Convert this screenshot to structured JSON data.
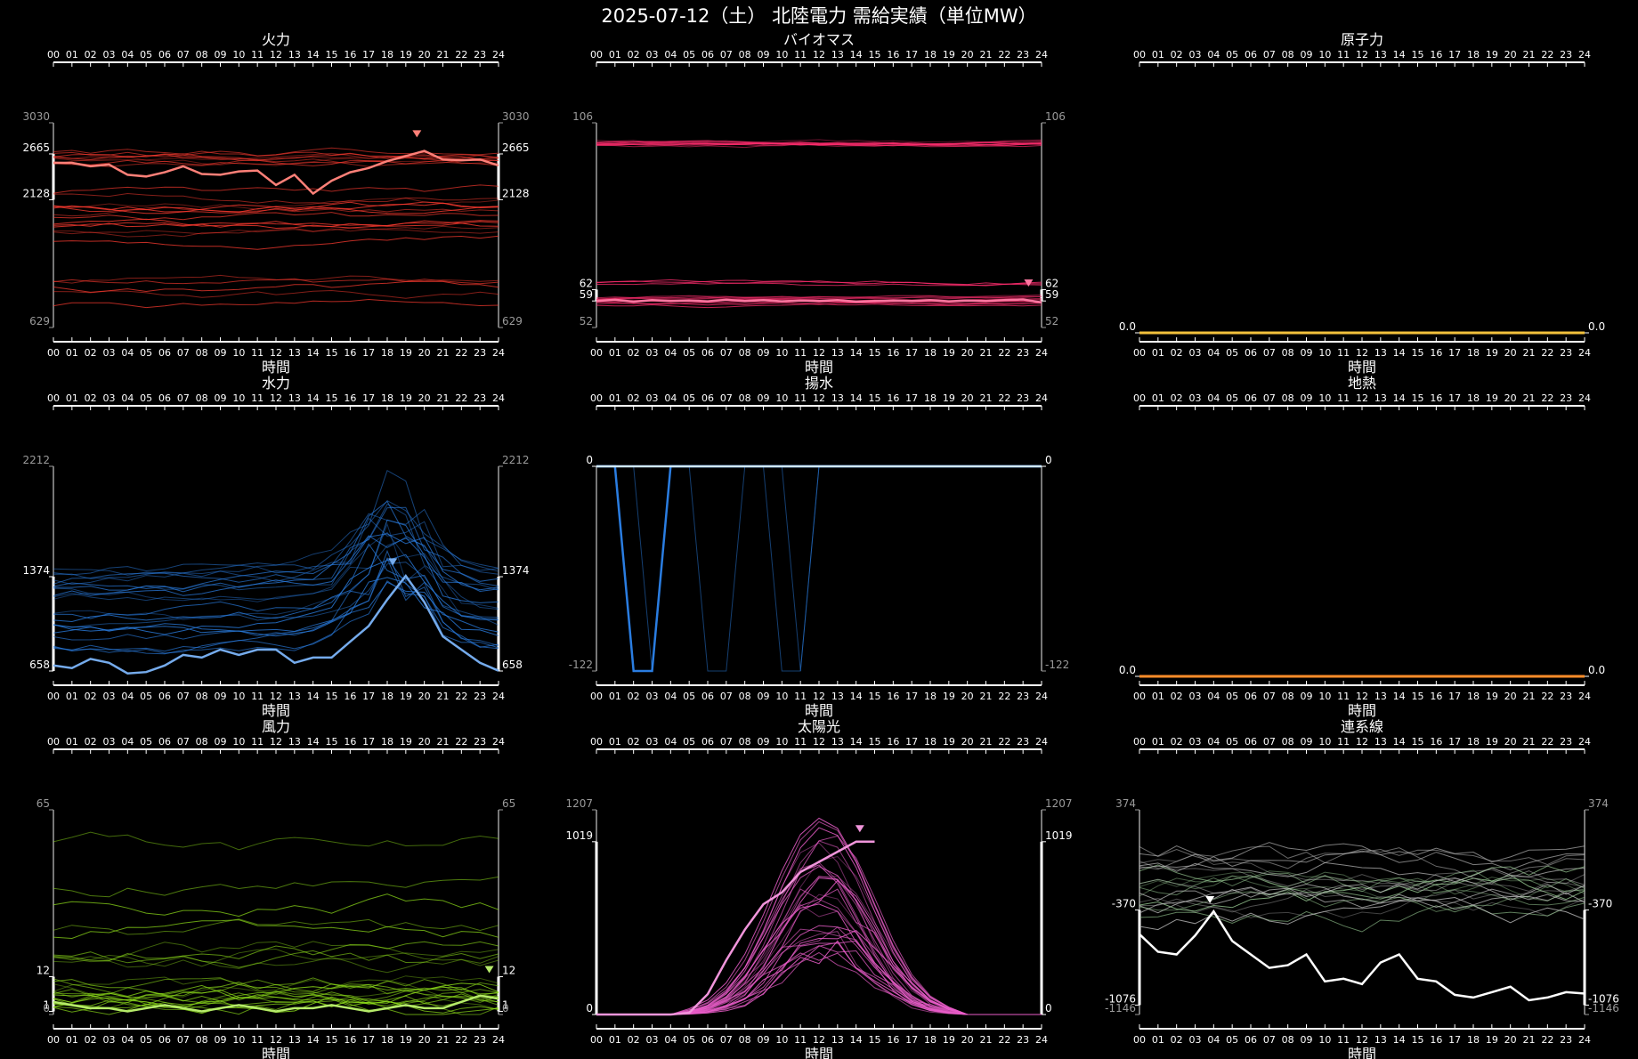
{
  "title": "2025-07-12（土） 北陸電力 需給実績（単位MW）",
  "xlabel": "時間",
  "hours": [
    "00",
    "01",
    "02",
    "03",
    "04",
    "05",
    "06",
    "07",
    "08",
    "09",
    "10",
    "11",
    "12",
    "13",
    "14",
    "15",
    "16",
    "17",
    "18",
    "19",
    "20",
    "21",
    "22",
    "23",
    "24"
  ],
  "chart_data": [
    {
      "type": "line",
      "title": "火力",
      "color": "#ff3b30",
      "ylim": [
        629,
        3030
      ],
      "yticks": [
        {
          "label": "3030",
          "value": 3030,
          "tone": "grey"
        },
        {
          "label": "2665",
          "value": 2665,
          "tone": "white"
        },
        {
          "label": "2128",
          "value": 2128,
          "tone": "white"
        },
        {
          "label": "629",
          "value": 629,
          "tone": "grey"
        }
      ],
      "seed": 11,
      "bands": [
        [
          2550,
          2700,
          9
        ],
        [
          1650,
          2250,
          14
        ],
        [
          900,
          1250,
          5
        ]
      ],
      "noise": 80,
      "main": [
        2560,
        2560,
        2520,
        2540,
        2420,
        2400,
        2450,
        2520,
        2430,
        2420,
        2460,
        2470,
        2300,
        2420,
        2200,
        2350,
        2450,
        2500,
        2580,
        2640,
        2700,
        2600,
        2590,
        2600,
        2530
      ],
      "marker": {
        "hour": 19.6,
        "value": 2890
      }
    },
    {
      "type": "line",
      "title": "バイオマス",
      "color": "#ff2d6e",
      "ylim": [
        52,
        106
      ],
      "yticks": [
        {
          "label": "106",
          "value": 106,
          "tone": "grey"
        },
        {
          "label": "62",
          "value": 62,
          "tone": "white"
        },
        {
          "label": "59",
          "value": 59,
          "tone": "white"
        },
        {
          "label": "52",
          "value": 52,
          "tone": "grey"
        }
      ],
      "seed": 23,
      "bands": [
        [
          100,
          101.5,
          12
        ],
        [
          58,
          60,
          12
        ],
        [
          62,
          64,
          3
        ]
      ],
      "noise": 0.8,
      "main": [
        59,
        59.3,
        58.8,
        59.2,
        59,
        59.1,
        58.9,
        59.3,
        59,
        59.2,
        58.9,
        59.1,
        59,
        59.2,
        58.8,
        59,
        59.1,
        59,
        59.2,
        58.9,
        59.1,
        59,
        59.2,
        59.4,
        58.6
      ],
      "marker": {
        "hour": 23.3,
        "value": 63.5
      }
    },
    {
      "type": "line",
      "title": "原子力",
      "color": "#f2c13c",
      "ylim": [
        0,
        1
      ],
      "yticks": [
        {
          "label": "0.0",
          "value": 0,
          "tone": "white"
        }
      ],
      "seed": 1,
      "bands": [],
      "noise": 0,
      "main": [
        0,
        0,
        0,
        0,
        0,
        0,
        0,
        0,
        0,
        0,
        0,
        0,
        0,
        0,
        0,
        0,
        0,
        0,
        0,
        0,
        0,
        0,
        0,
        0,
        0
      ]
    },
    {
      "type": "line",
      "title": "水力",
      "color": "#2a7de1",
      "ylim": [
        658,
        2212
      ],
      "yticks": [
        {
          "label": "2212",
          "value": 2212,
          "tone": "grey"
        },
        {
          "label": "1374",
          "value": 1374,
          "tone": "white"
        },
        {
          "label": "658",
          "value": 658,
          "tone": "white"
        }
      ],
      "seed": 37,
      "bands": [
        [
          850,
          1450,
          22
        ]
      ],
      "noise": 90,
      "peak": {
        "center": 18.3,
        "width": 2.4,
        "amp": 600
      },
      "main": [
        700,
        680,
        750,
        720,
        640,
        650,
        700,
        780,
        760,
        820,
        780,
        820,
        820,
        720,
        760,
        760,
        880,
        1000,
        1200,
        1380,
        1180,
        920,
        820,
        720,
        660
      ],
      "marker": {
        "hour": 18.3,
        "value": 1480
      }
    },
    {
      "type": "line",
      "title": "揚水",
      "color": "#2a7de1",
      "ylim": [
        -122,
        0
      ],
      "yticks": [
        {
          "label": "0",
          "value": 0,
          "tone": "white"
        },
        {
          "label": "-122",
          "value": -122,
          "tone": "grey"
        }
      ],
      "seed": 5,
      "bands": [],
      "noise": 0,
      "ghosts": [
        [
          0,
          0,
          -122,
          -122,
          0,
          0,
          0,
          0,
          0,
          0,
          0,
          0,
          0,
          0,
          0,
          0,
          0,
          0,
          0,
          0,
          0,
          0,
          0,
          0,
          0
        ],
        [
          0,
          0,
          0,
          -122,
          0,
          0,
          0,
          0,
          0,
          0,
          0,
          0,
          0,
          0,
          0,
          0,
          0,
          0,
          0,
          0,
          0,
          0,
          0,
          0,
          0
        ],
        [
          0,
          0,
          0,
          0,
          0,
          0,
          -122,
          -122,
          0,
          0,
          0,
          0,
          0,
          0,
          0,
          0,
          0,
          0,
          0,
          0,
          0,
          0,
          0,
          0,
          0
        ],
        [
          0,
          0,
          0,
          0,
          0,
          0,
          0,
          0,
          0,
          0,
          -122,
          -122,
          0,
          0,
          0,
          0,
          0,
          0,
          0,
          0,
          0,
          0,
          0,
          0,
          0
        ],
        [
          0,
          0,
          0,
          0,
          0,
          0,
          0,
          0,
          0,
          0,
          0,
          -122,
          0,
          0,
          0,
          0,
          0,
          0,
          0,
          0,
          0,
          0,
          0,
          0,
          0
        ]
      ],
      "blue": [
        0,
        0,
        -122,
        -122,
        0,
        0,
        0,
        0,
        0,
        0,
        0,
        0,
        0,
        0,
        0,
        0,
        0,
        0,
        0,
        0,
        0,
        0,
        0,
        0,
        0
      ],
      "main": [
        0,
        0,
        0,
        0,
        0,
        0,
        0,
        0,
        0,
        0,
        0,
        0,
        0,
        0,
        0,
        0,
        0,
        0,
        0,
        0,
        0,
        0,
        0,
        0,
        0
      ],
      "main_color": "#cfe8ff"
    },
    {
      "type": "line",
      "title": "地熱",
      "color": "#ff8c2a",
      "ylim": [
        0,
        1
      ],
      "yticks": [
        {
          "label": "0.0",
          "value": 0,
          "tone": "white"
        }
      ],
      "seed": 2,
      "bands": [],
      "noise": 0,
      "main": [
        0,
        0,
        0,
        0,
        0,
        0,
        0,
        0,
        0,
        0,
        0,
        0,
        0,
        0,
        0,
        0,
        0,
        0,
        0,
        0,
        0,
        0,
        0,
        0,
        0
      ]
    },
    {
      "type": "line",
      "title": "風力",
      "color": "#8fe01a",
      "ylim": [
        0,
        65
      ],
      "yticks": [
        {
          "label": "65",
          "value": 65,
          "tone": "grey"
        },
        {
          "label": "12",
          "value": 12,
          "tone": "white"
        },
        {
          "label": "1",
          "value": 1,
          "tone": "white"
        },
        {
          "label": "0",
          "value": 0,
          "tone": "grey"
        }
      ],
      "seed": 41,
      "bands": [
        [
          2,
          12,
          16
        ],
        [
          15,
          35,
          8
        ],
        [
          40,
          55,
          2
        ]
      ],
      "noise": 5,
      "main": [
        4,
        3,
        2,
        2,
        1,
        2,
        3,
        2,
        1,
        2,
        3,
        2,
        1,
        2,
        2,
        3,
        2,
        1,
        2,
        3,
        2,
        2,
        4,
        6,
        5
      ],
      "marker": {
        "hour": 23.5,
        "value": 14
      }
    },
    {
      "type": "line",
      "title": "太陽光",
      "color": "#e85cc8",
      "ylim": [
        0,
        1207
      ],
      "yticks": [
        {
          "label": "1207",
          "value": 1207,
          "tone": "grey"
        },
        {
          "label": "1019",
          "value": 1019,
          "tone": "white"
        },
        {
          "label": "0",
          "value": 0,
          "tone": "white"
        }
      ],
      "seed": 53,
      "solar": true,
      "noise": 90,
      "main": [
        0,
        0,
        0,
        0,
        0,
        10,
        120,
        320,
        500,
        650,
        720,
        840,
        900,
        960,
        1019,
        1019,
        null,
        null,
        null,
        null,
        null,
        null,
        null,
        null,
        null
      ],
      "marker": {
        "hour": 14.2,
        "value": 1090
      }
    },
    {
      "type": "line",
      "title": "連系線",
      "color": "#9fd39a",
      "ylim": [
        -1146,
        374
      ],
      "yticks": [
        {
          "label": "374",
          "value": 374,
          "tone": "grey"
        },
        {
          "label": "-370",
          "value": -370,
          "tone": "white"
        },
        {
          "label": "-1076",
          "value": -1076,
          "tone": "white"
        },
        {
          "label": "-1146",
          "value": -1146,
          "tone": "grey"
        }
      ],
      "seed": 67,
      "bands": [
        [
          -450,
          150,
          22
        ]
      ],
      "noise": 160,
      "grey": true,
      "main": [
        -550,
        -680,
        -700,
        -560,
        -380,
        -600,
        -700,
        -800,
        -780,
        -700,
        -900,
        -880,
        -920,
        -760,
        -700,
        -880,
        -900,
        -1000,
        -1020,
        -980,
        -940,
        -1040,
        -1020,
        -980,
        -990
      ],
      "main_color": "#ffffff",
      "marker": {
        "hour": 3.8,
        "value": -300
      }
    }
  ]
}
